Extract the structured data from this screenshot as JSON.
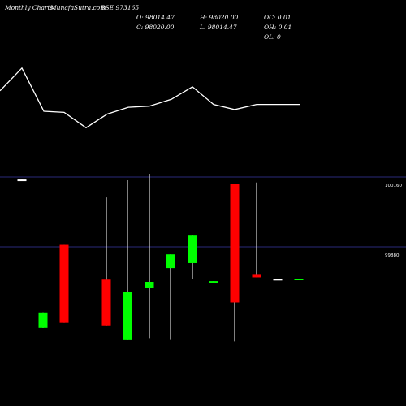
{
  "header": {
    "site": "Monthly Charts",
    "brand": "MunafaSutra.com",
    "symbol": "BSE 973165",
    "open": "O: 98014.47",
    "close": "C: 98020.00",
    "high": "H: 98020.00",
    "low": "L: 98014.47",
    "oc": "OC: 0.01",
    "oh": "OH: 0.01",
    "ol": "OL: 0"
  },
  "chart_data": {
    "type": "candlestick",
    "y_tick_labels": [
      "100160",
      "99880"
    ],
    "y_tick_values": [
      100160,
      99880
    ],
    "ylim": [
      99508,
      100173
    ],
    "indicator_line": [
      {
        "x": 0,
        "v": 0.36
      },
      {
        "x": 27,
        "v": 0.76
      },
      {
        "x": 54,
        "v": 0.0
      },
      {
        "x": 79,
        "v": -0.02
      },
      {
        "x": 106,
        "v": -0.29
      },
      {
        "x": 132,
        "v": -0.05
      },
      {
        "x": 158,
        "v": 0.07
      },
      {
        "x": 184,
        "v": 0.09
      },
      {
        "x": 211,
        "v": 0.21
      },
      {
        "x": 237,
        "v": 0.43
      },
      {
        "x": 263,
        "v": 0.12
      },
      {
        "x": 289,
        "v": 0.03
      },
      {
        "x": 316,
        "v": 0.12
      },
      {
        "x": 342,
        "v": 0.12
      },
      {
        "x": 369,
        "v": 0.12
      }
    ],
    "candles": [
      {
        "x": 27,
        "open": 100150,
        "close": 100148,
        "high": 100150,
        "low": 100148,
        "color": "#ffffff"
      },
      {
        "x": 53,
        "open": 99555,
        "close": 99617,
        "high": 99617,
        "low": 99555,
        "color": "#00ff00"
      },
      {
        "x": 79,
        "open": 99888,
        "close": 99575,
        "high": 99888,
        "low": 99575,
        "color": "#ff0000"
      },
      {
        "x": 131,
        "open": 99749,
        "close": 99565,
        "high": 100078,
        "low": 99565,
        "color": "#ff0000"
      },
      {
        "x": 157,
        "open": 99506,
        "close": 99698,
        "high": 100147,
        "low": 99506,
        "color": "#00ff00"
      },
      {
        "x": 184,
        "open": 99714,
        "close": 99740,
        "high": 100173,
        "low": 99514,
        "color": "#00ff00"
      },
      {
        "x": 210,
        "open": 99795,
        "close": 99850,
        "high": 99850,
        "low": 99507,
        "color": "#00ff00"
      },
      {
        "x": 237,
        "open": 99815,
        "close": 99925,
        "high": 99925,
        "low": 99750,
        "color": "#00ff00"
      },
      {
        "x": 263,
        "open": 99740,
        "close": 99743,
        "high": 99743,
        "low": 99740,
        "color": "#00ff00"
      },
      {
        "x": 289,
        "open": 100133,
        "close": 99657,
        "high": 100133,
        "low": 99501,
        "color": "#ff0000"
      },
      {
        "x": 316,
        "open": 99768,
        "close": 99758,
        "high": 100138,
        "low": 99758,
        "color": "#ff0000"
      },
      {
        "x": 342,
        "open": 99752,
        "close": 99752,
        "high": 99752,
        "low": 99751,
        "color": "#ffffff"
      },
      {
        "x": 368,
        "open": 99752,
        "close": 99753,
        "high": 99753,
        "low": 99752,
        "color": "#00ff00"
      }
    ]
  }
}
